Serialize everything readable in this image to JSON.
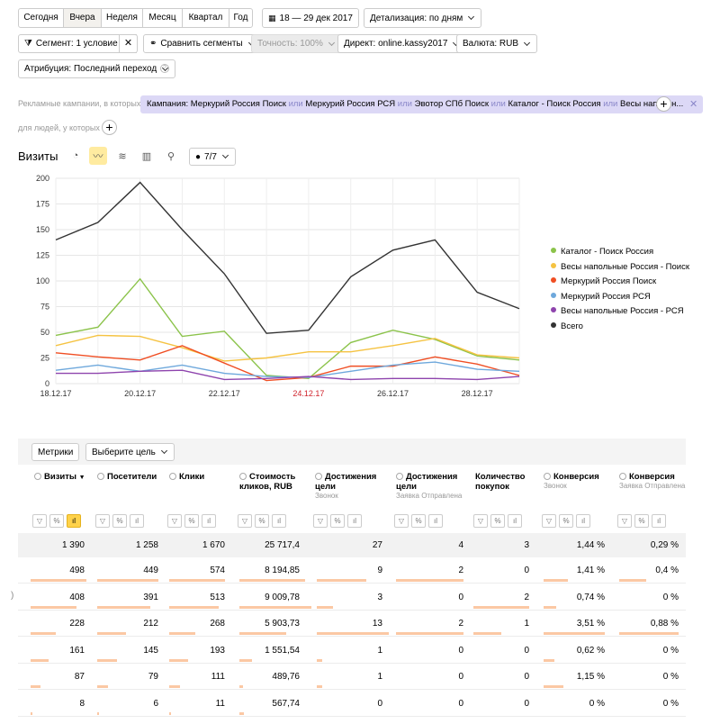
{
  "periods": [
    "Сегодня",
    "Вчера",
    "Неделя",
    "Месяц",
    "Квартал",
    "Год"
  ],
  "date_range": "18 — 29 дек 2017",
  "detail": "Детализация: по дням",
  "segment": "Сегмент: 1 условие",
  "compare": "Сравнить сегменты",
  "accuracy": "Точность: 100%",
  "direct": "Директ: online.kassy2017",
  "currency": "Валюта: RUB",
  "attribution": "Атрибуция: Последний переход",
  "campaign_prefix": "Рекламные кампании, в которых",
  "campaign_chip": {
    "label": "Кампания:",
    "items": [
      "Меркурий Россия Поиск",
      "Меркурий Россия РСЯ",
      "Эвотор СПб Поиск",
      "Каталог - Поиск Россия",
      "Весы напольн..."
    ],
    "or": "или"
  },
  "people_prefix": "для людей, у которых",
  "chart_title": "Визиты",
  "series_count": "7/7",
  "chart_data": {
    "type": "line",
    "x": [
      "18.12.17",
      "19.12.17",
      "20.12.17",
      "21.12.17",
      "22.12.17",
      "23.12.17",
      "24.12.17",
      "25.12.17",
      "26.12.17",
      "27.12.17",
      "28.12.17",
      "29.12.17"
    ],
    "x_tick_labels": [
      "18.12.17",
      "20.12.17",
      "22.12.17",
      "24.12.17",
      "26.12.17",
      "28.12.17"
    ],
    "ylim": [
      0,
      200
    ],
    "y_ticks": [
      0,
      25,
      50,
      75,
      100,
      125,
      150,
      175,
      200
    ],
    "grid": true,
    "legend": "right",
    "series": [
      {
        "name": "Каталог - Поиск Россия",
        "color": "#8bc34a",
        "values": [
          47,
          55,
          102,
          46,
          51,
          8,
          5,
          40,
          52,
          43,
          27,
          23
        ]
      },
      {
        "name": "Весы напольные Россия - Поиск",
        "color": "#f5c342",
        "values": [
          37,
          47,
          46,
          35,
          22,
          25,
          31,
          31,
          37,
          44,
          28,
          25
        ]
      },
      {
        "name": "Меркурий Россия Поиск",
        "color": "#f04e23",
        "values": [
          30,
          26,
          23,
          37,
          20,
          3,
          6,
          17,
          17,
          26,
          19,
          8
        ]
      },
      {
        "name": "Меркурий Россия РСЯ",
        "color": "#6ea8dc",
        "values": [
          13,
          18,
          12,
          18,
          10,
          7,
          6,
          12,
          18,
          21,
          14,
          12
        ]
      },
      {
        "name": "Весы напольные Россия - РСЯ",
        "color": "#8e44ad",
        "values": [
          10,
          10,
          12,
          13,
          4,
          5,
          7,
          4,
          5,
          5,
          4,
          7
        ]
      },
      {
        "name": "Всего",
        "color": "#333333",
        "values": [
          140,
          157,
          196,
          150,
          107,
          49,
          52,
          104,
          130,
          140,
          89,
          73
        ]
      }
    ]
  },
  "table": {
    "metrics_btn": "Метрики",
    "goal_btn": "Выберите цель",
    "columns": [
      {
        "label": "Визиты",
        "sort": "▼",
        "sub": ""
      },
      {
        "label": "Посетители",
        "sub": ""
      },
      {
        "label": "Клики",
        "sub": ""
      },
      {
        "label": "Стоимость кликов, RUB",
        "sub": ""
      },
      {
        "label": "Достижения цели",
        "sub": "Звонок"
      },
      {
        "label": "Достижения цели",
        "sub": "Заявка Отправлена"
      },
      {
        "label": "Количество покупок",
        "sub": ""
      },
      {
        "label": "Конверсия",
        "sub": "Звонок"
      },
      {
        "label": "Конверсия",
        "sub": "Заявка Отправлена"
      }
    ],
    "totals": [
      "1 390",
      "1 258",
      "1 670",
      "25 717,4",
      "27",
      "4",
      "3",
      "1,44 %",
      "0,29 %"
    ],
    "rows": [
      [
        "498",
        "449",
        "574",
        "8 194,85",
        "9",
        "2",
        "0",
        "1,41 %",
        "0,4 %"
      ],
      [
        "408",
        "391",
        "513",
        "9 009,78",
        "3",
        "0",
        "2",
        "0,74 %",
        "0 %"
      ],
      [
        "228",
        "212",
        "268",
        "5 903,73",
        "13",
        "2",
        "1",
        "3,51 %",
        "0,88 %"
      ],
      [
        "161",
        "145",
        "193",
        "1 551,54",
        "1",
        "0",
        "0",
        "0,62 %",
        "0 %"
      ],
      [
        "87",
        "79",
        "111",
        "489,76",
        "1",
        "0",
        "0",
        "1,15 %",
        "0 %"
      ],
      [
        "8",
        "6",
        "11",
        "567,74",
        "0",
        "0",
        "0",
        "0 %",
        "0 %"
      ]
    ],
    "row_marker": ")"
  }
}
